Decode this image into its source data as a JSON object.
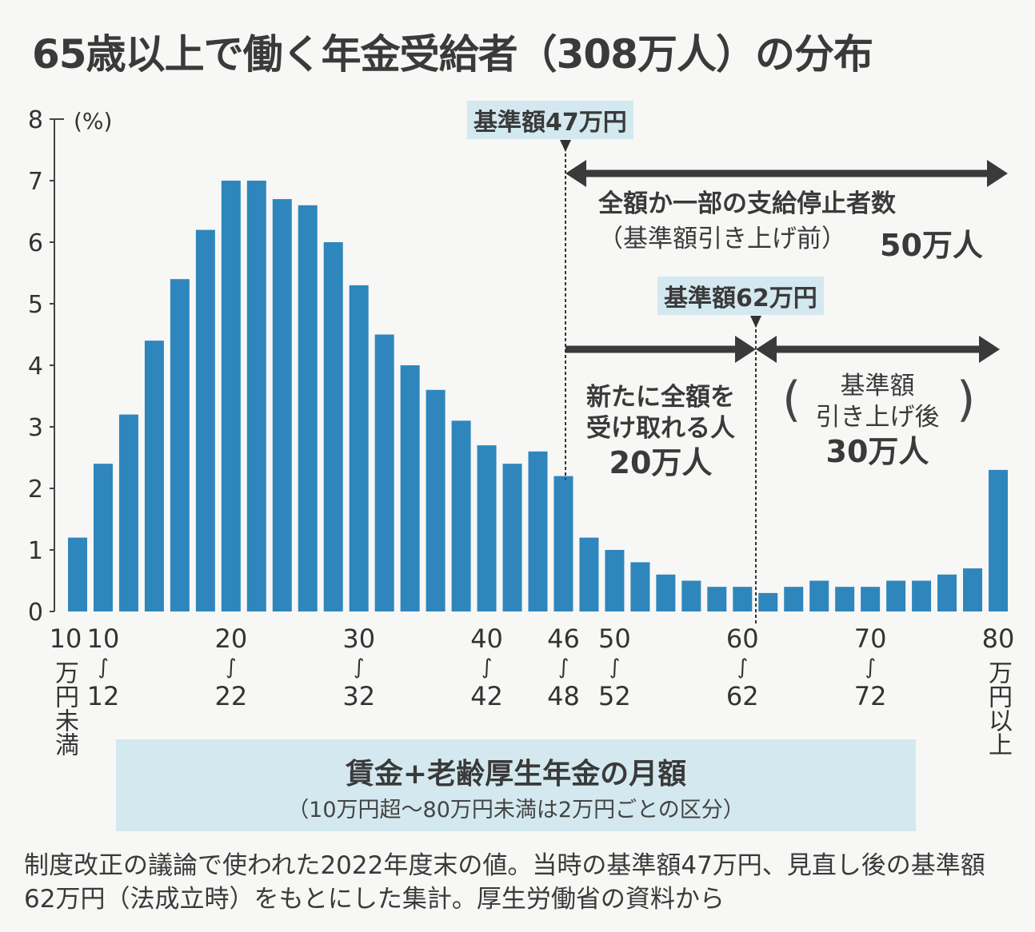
{
  "chart_data": {
    "type": "bar",
    "title": "65歳以上で働く年金受給者（308万人）の分布",
    "ylabel": "(%)",
    "ylim": [
      0,
      8
    ],
    "yticks": [
      0,
      1,
      2,
      3,
      4,
      5,
      6,
      7,
      8
    ],
    "grid": false,
    "xlabel": "賃金+老齢厚生年金の月額",
    "xlabel_sub": "（10万円超～80万円未満は2万円ごとの区分）",
    "categories": [
      "10万円未満",
      "10〜12",
      "12〜14",
      "14〜16",
      "16〜18",
      "18〜20",
      "20〜22",
      "22〜24",
      "24〜26",
      "26〜28",
      "28〜30",
      "30〜32",
      "32〜34",
      "34〜36",
      "36〜38",
      "38〜40",
      "40〜42",
      "42〜44",
      "44〜46",
      "46〜48",
      "48〜50",
      "50〜52",
      "52〜54",
      "54〜56",
      "56〜58",
      "58〜60",
      "60〜62",
      "62〜64",
      "64〜66",
      "66〜68",
      "68〜70",
      "70〜72",
      "72〜74",
      "74〜76",
      "76〜78",
      "78〜80",
      "80万円以上"
    ],
    "values": [
      1.2,
      2.4,
      3.2,
      4.4,
      5.4,
      6.2,
      7.0,
      7.0,
      6.7,
      6.6,
      6.0,
      5.3,
      4.5,
      4.0,
      3.6,
      3.1,
      2.7,
      2.4,
      2.6,
      2.2,
      1.2,
      1.0,
      0.8,
      0.6,
      0.5,
      0.4,
      0.4,
      0.3,
      0.4,
      0.5,
      0.4,
      0.4,
      0.5,
      0.5,
      0.6,
      0.7,
      2.3
    ],
    "tick_labels": [
      {
        "index": 0,
        "top": "10",
        "bottom": "万円未満",
        "vertical": true
      },
      {
        "index": 1,
        "top": "10",
        "bottom": "12"
      },
      {
        "index": 6,
        "top": "20",
        "bottom": "22"
      },
      {
        "index": 11,
        "top": "30",
        "bottom": "32"
      },
      {
        "index": 16,
        "top": "40",
        "bottom": "42"
      },
      {
        "index": 19,
        "top": "46",
        "bottom": "48"
      },
      {
        "index": 21,
        "top": "50",
        "bottom": "52"
      },
      {
        "index": 26,
        "top": "60",
        "bottom": "62"
      },
      {
        "index": 31,
        "top": "70",
        "bottom": "72"
      },
      {
        "index": 36,
        "top": "80",
        "bottom": "万円以上",
        "vertical": true
      }
    ],
    "range_sep": "∫",
    "color": "#2f86bd",
    "annotations": {
      "threshold_old": "基準額47万円",
      "threshold_new": "基準額62万円",
      "stopped_title": "全額か一部の支給停止者数",
      "stopped_sub": "（基準額引き上げ前）",
      "stopped_value": "50万人",
      "newly_full_line1": "新たに全額を",
      "newly_full_line2": "受け取れる人",
      "newly_full_value": "20万人",
      "after_line1": "基準額",
      "after_line2": "引き上げ後",
      "after_value": "30万人"
    }
  },
  "note": "制度改正の議論で使われた2022年度末の値。当時の基準額47万円、見直し後の基準額62万円（法成立時）をもとにした集計。厚生労働省の資料から"
}
